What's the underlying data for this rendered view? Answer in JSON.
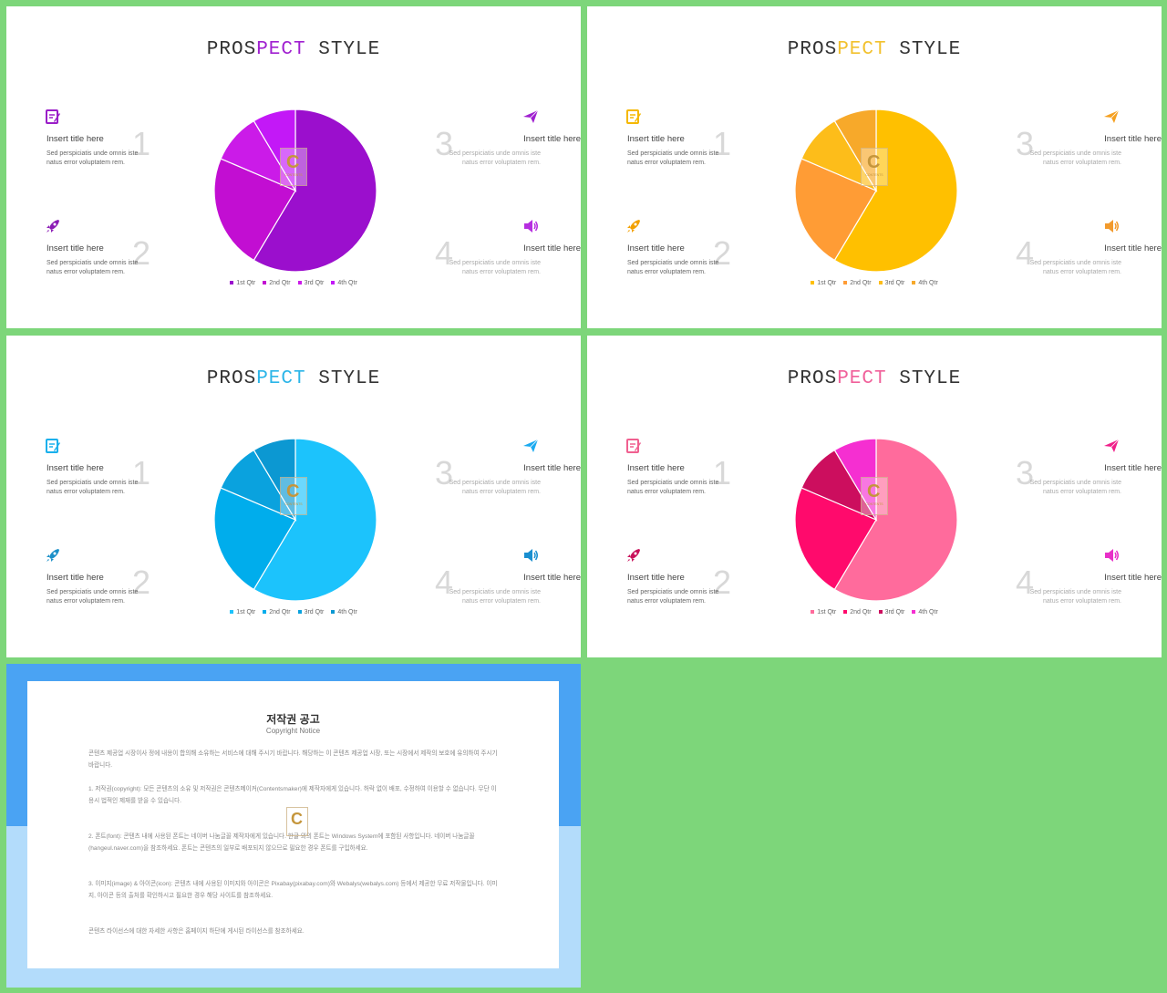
{
  "slides": [
    {
      "title_pre": "PROS",
      "title_accent": "PECT",
      "title_post": " STYLE",
      "accent": "#a020d0",
      "icon_colors": [
        "#9a1ec8",
        "#8b1ab5",
        "#a020d0",
        "#b62ee0"
      ],
      "items": [
        {
          "title": "Insert title here",
          "desc": "Sed perspiciatis unde omnis iste natus error voluptatem rem.",
          "num": "1"
        },
        {
          "title": "Insert title here",
          "desc": "Sed perspiciatis unde omnis iste natus error voluptatem rem.",
          "num": "2"
        },
        {
          "title": "Insert title here",
          "desc": "Sed perspiciatis unde omnis iste natus error voluptatem rem.",
          "num": "3"
        },
        {
          "title": "Insert title here",
          "desc": "Sed perspiciatis unde omnis iste natus error voluptatem rem.",
          "num": "4"
        }
      ],
      "legend": [
        "1st Qtr",
        "2nd Qtr",
        "3rd Qtr",
        "4th Qtr"
      ],
      "pie_colors": [
        "#9b0fcd",
        "#c20ed2",
        "#cb1be8",
        "#c318f7"
      ]
    },
    {
      "title_pre": "PROS",
      "title_accent": "PECT",
      "title_post": " STYLE",
      "accent": "#f2c12e",
      "icon_colors": [
        "#f5b800",
        "#f2a000",
        "#f5a020",
        "#f29a2c"
      ],
      "items": [
        {
          "title": "Insert title here",
          "desc": "Sed perspiciatis unde omnis iste natus error voluptatem rem.",
          "num": "1"
        },
        {
          "title": "Insert title here",
          "desc": "Sed perspiciatis unde omnis iste natus error voluptatem rem.",
          "num": "2"
        },
        {
          "title": "Insert title here",
          "desc": "Sed perspiciatis unde omnis iste natus error voluptatem rem.",
          "num": "3"
        },
        {
          "title": "Insert title here",
          "desc": "Sed perspiciatis unde omnis iste natus error voluptatem rem.",
          "num": "4"
        }
      ],
      "legend": [
        "1st Qtr",
        "2nd Qtr",
        "3rd Qtr",
        "4th Qtr"
      ],
      "pie_colors": [
        "#ffc000",
        "#ff9c35",
        "#fdbd1a",
        "#f7a92a"
      ]
    },
    {
      "title_pre": "PROS",
      "title_accent": "PECT",
      "title_post": " STYLE",
      "accent": "#2bb5e8",
      "icon_colors": [
        "#1ab0ec",
        "#1a8fc8",
        "#1aaaf0",
        "#1a8fd0"
      ],
      "items": [
        {
          "title": "Insert title here",
          "desc": "Sed perspiciatis unde omnis iste natus error voluptatem rem.",
          "num": "1"
        },
        {
          "title": "Insert title here",
          "desc": "Sed perspiciatis unde omnis iste natus error voluptatem rem.",
          "num": "2"
        },
        {
          "title": "Insert title here",
          "desc": "Sed perspiciatis unde omnis iste natus error voluptatem rem.",
          "num": "3"
        },
        {
          "title": "Insert title here",
          "desc": "Sed perspiciatis unde omnis iste natus error voluptatem rem.",
          "num": "4"
        }
      ],
      "legend": [
        "1st Qtr",
        "2nd Qtr",
        "3rd Qtr",
        "4th Qtr"
      ],
      "pie_colors": [
        "#1cc3fc",
        "#00adec",
        "#0aa2de",
        "#0c98d2"
      ]
    },
    {
      "title_pre": "PROS",
      "title_accent": "PECT",
      "title_post": " STYLE",
      "accent": "#f0609a",
      "icon_colors": [
        "#f06090",
        "#c8105a",
        "#f0208a",
        "#e830c8"
      ],
      "items": [
        {
          "title": "Insert title here",
          "desc": "Sed perspiciatis unde omnis iste natus error voluptatem rem.",
          "num": "1"
        },
        {
          "title": "Insert title here",
          "desc": "Sed perspiciatis unde omnis iste natus error voluptatem rem.",
          "num": "2"
        },
        {
          "title": "Insert title here",
          "desc": "Sed perspiciatis unde omnis iste natus error voluptatem rem.",
          "num": "3"
        },
        {
          "title": "Insert title here",
          "desc": "Sed perspiciatis unde omnis iste natus error voluptatem rem.",
          "num": "4"
        }
      ],
      "legend": [
        "1st Qtr",
        "2nd Qtr",
        "3rd Qtr",
        "4th Qtr"
      ],
      "pie_colors": [
        "#ff6b9c",
        "#ff0a6c",
        "#cc0e5e",
        "#f52fd1"
      ]
    }
  ],
  "chart_data": [
    {
      "type": "pie",
      "categories": [
        "1st Qtr",
        "2nd Qtr",
        "3rd Qtr",
        "4th Qtr"
      ],
      "values": [
        8.2,
        3.2,
        1.4,
        1.2
      ],
      "title": ""
    },
    {
      "type": "pie",
      "categories": [
        "1st Qtr",
        "2nd Qtr",
        "3rd Qtr",
        "4th Qtr"
      ],
      "values": [
        8.2,
        3.2,
        1.4,
        1.2
      ],
      "title": ""
    },
    {
      "type": "pie",
      "categories": [
        "1st Qtr",
        "2nd Qtr",
        "3rd Qtr",
        "4th Qtr"
      ],
      "values": [
        8.2,
        3.2,
        1.4,
        1.2
      ],
      "title": ""
    },
    {
      "type": "pie",
      "categories": [
        "1st Qtr",
        "2nd Qtr",
        "3rd Qtr",
        "4th Qtr"
      ],
      "values": [
        8.2,
        3.2,
        1.4,
        1.2
      ],
      "title": ""
    }
  ],
  "notice": {
    "title": "저작권 공고",
    "subtitle": "Copyright Notice",
    "paragraphs": [
      "콘텐츠 제공업 시장이사 정에 내용이 합의해 소유하는 서비스에 대해 주시기 바랍니다. 해당하는 이 콘텐츠 제공업 시장, 또는 시장에서 제작의 보호에 유의하여 주시기 바랍니다.",
      "1. 저작권(copyright): 모든 콘텐츠의 소유 및 저작권은 콘텐츠메이커(Contentsmaker)에 제작자에게 있습니다. 허락 없이 배포, 수정하여 이용할 수 없습니다. 무단 이용시 법적인 제재를 받을 수 있습니다.",
      "2. 폰트(font): 콘텐츠 내에 사용된 폰트는 네이버 나눔글꼴 제작자에게 있습니다. 한글 외의 폰트는 Windows System에 포함된 사항입니다. 네이버 나눔글꼴(hangeul.naver.com)을 참조하세요. 폰트는 콘텐츠의 일부로 배포되지 않으므로 필요한 경우 폰트를 구입하세요.",
      "3. 이미지(image) & 아이콘(icon): 콘텐츠 내에 사용된 이미지와 아이콘은 Pixabay(pixabay.com)와 Webalys(webalys.com) 등에서 제공한 무료 저작물입니다. 이미지, 아이콘 등의 출처를 확인하시고 필요한 경우 해당 사이트를 참조하세요.",
      "콘텐츠 라이선스에 대한 자세한 사항은 홈페이지 하단에 게시된 라이선스를 참조하세요."
    ]
  }
}
